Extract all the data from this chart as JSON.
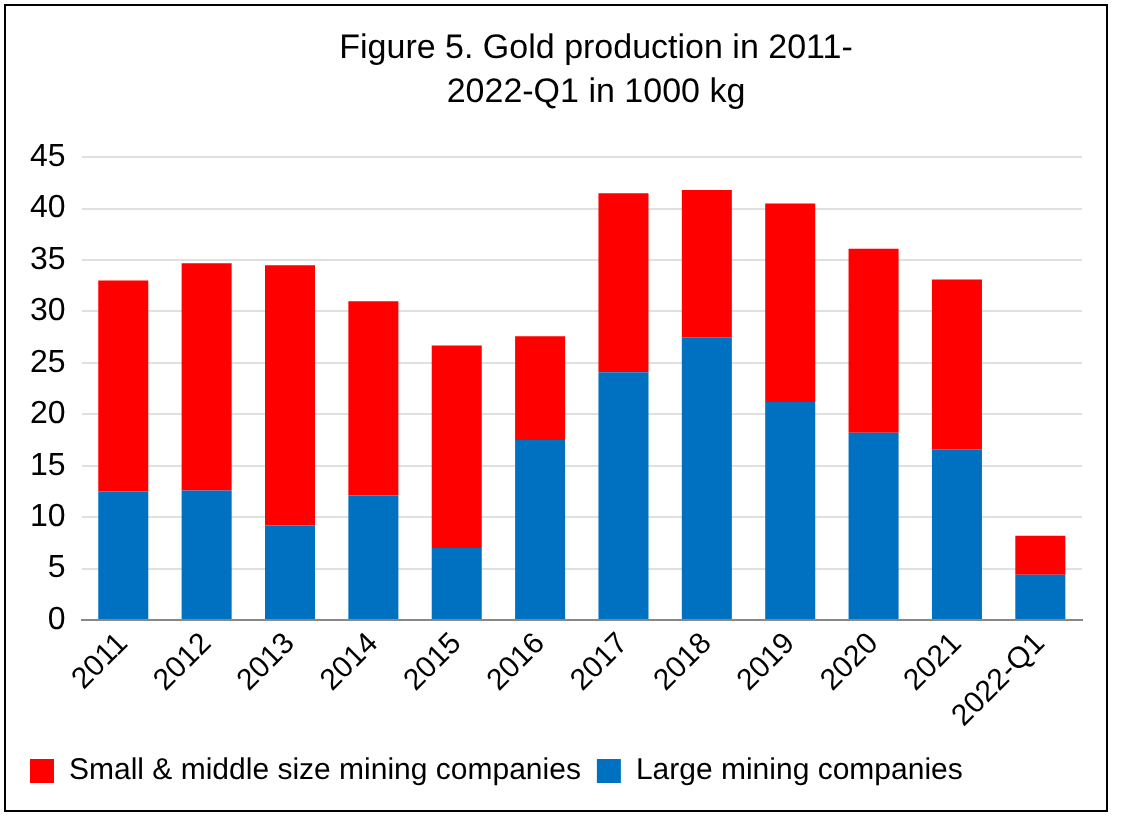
{
  "chart_data": {
    "type": "bar",
    "title": "Figure 5. Gold production in 2011- 2022-Q1  in 1000 kg",
    "categories": [
      "2011",
      "2012",
      "2013",
      "2014",
      "2015",
      "2016",
      "2017",
      "2018",
      "2019",
      "2020",
      "2021",
      "2022-Q1"
    ],
    "series": [
      {
        "name": "Large mining companies",
        "color": "#0070c0",
        "values": [
          12.5,
          12.6,
          9.2,
          12.1,
          7.0,
          17.5,
          24.1,
          27.5,
          21.2,
          18.2,
          16.6,
          4.4
        ]
      },
      {
        "name": "Small & middle size mining companies",
        "color": "#ff0000",
        "values": [
          20.5,
          22.1,
          25.3,
          18.9,
          19.7,
          10.1,
          17.4,
          14.3,
          19.3,
          17.9,
          16.5,
          3.8
        ]
      }
    ],
    "stacked": true,
    "ylim": [
      0,
      45
    ],
    "yticks": [
      0,
      5,
      10,
      15,
      20,
      25,
      30,
      35,
      40,
      45
    ],
    "grid": "y",
    "legend": "bottom"
  }
}
